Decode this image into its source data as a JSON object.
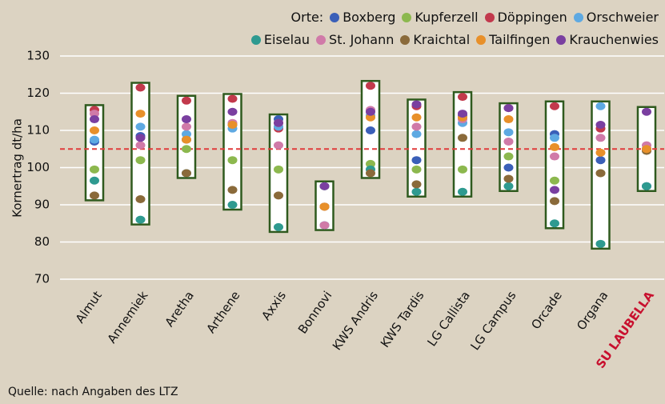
{
  "chart_data": {
    "type": "range-dot",
    "legend_title": "Orte:",
    "y_label": "Kornertrag dt/ha",
    "source": "Quelle: nach Angaben des LTZ",
    "categories": [
      "Almut",
      "Annemiek",
      "Aretha",
      "Arthene",
      "Axxis",
      "Bonnovi",
      "KWS Andris",
      "KWS Tardis",
      "LG Callista",
      "LG Campus",
      "Orcade",
      "Organa",
      "SU LAUBELLA"
    ],
    "highlight_index": 12,
    "highlight_color": "#c8102e",
    "box_color": "#2f5a1e",
    "reference_line": 105,
    "reference_color": "#e03c3c",
    "ylim": [
      70,
      130
    ],
    "yticks": [
      70,
      80,
      90,
      100,
      110,
      120,
      130
    ],
    "grid": true,
    "series": [
      {
        "name": "Boxberg",
        "color": "#3a5fb8",
        "values": [
          107,
          108.5,
          107.5,
          111.5,
          113,
          84.5,
          110,
          102,
          114,
          100,
          109,
          102,
          95
        ]
      },
      {
        "name": "Kupferzell",
        "color": "#8cb84e",
        "values": [
          99.5,
          102,
          105,
          102,
          99.5,
          95,
          101,
          99.5,
          99.5,
          103,
          96.5,
          98.5,
          105
        ]
      },
      {
        "name": "Döppingen",
        "color": "#c2394c",
        "values": [
          115.5,
          121.5,
          118,
          118.5,
          110.5,
          89.5,
          122,
          116.5,
          119,
          116,
          116.5,
          110.5,
          105
        ]
      },
      {
        "name": "Orschweier",
        "color": "#5ea9e2",
        "values": [
          107.5,
          111,
          109,
          110.5,
          111,
          84.5,
          114,
          109,
          112,
          109.5,
          108,
          116.5,
          105
        ]
      },
      {
        "name": "Eiselau",
        "color": "#2e9a90",
        "values": [
          96.5,
          86,
          98.5,
          90,
          84,
          95,
          99.5,
          93.5,
          93.5,
          95,
          85,
          79.5,
          95
        ]
      },
      {
        "name": "St. Johann",
        "color": "#d07aa8",
        "values": [
          114.5,
          106,
          111,
          112,
          106,
          84.5,
          115.5,
          111,
          113,
          107,
          103,
          108,
          106
        ]
      },
      {
        "name": "Kraichtal",
        "color": "#8a6a3a",
        "values": [
          92.5,
          91.5,
          98.5,
          94,
          92.5,
          89.5,
          98.5,
          95.5,
          108,
          97,
          91,
          98.5,
          104.5
        ]
      },
      {
        "name": "Tailfingen",
        "color": "#e8902a",
        "values": [
          110,
          114.5,
          107.5,
          111.5,
          112,
          89.5,
          113.5,
          113.5,
          113.5,
          113,
          105.5,
          104,
          105
        ]
      },
      {
        "name": "Krauchenwies",
        "color": "#7a3fa0",
        "values": [
          113,
          108,
          113,
          115,
          112,
          95,
          115,
          117,
          114.5,
          116,
          94,
          111.5,
          115
        ]
      }
    ]
  }
}
